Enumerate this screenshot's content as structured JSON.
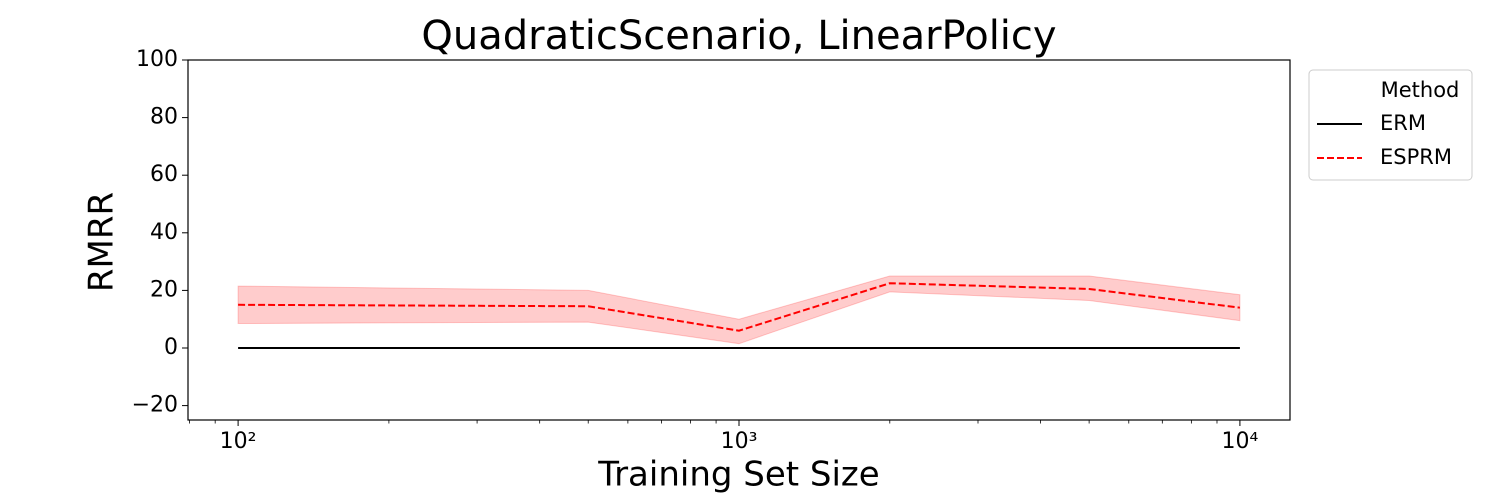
{
  "chart_data": {
    "type": "line",
    "title": "QuadraticScenario, LinearPolicy",
    "xlabel": "Training Set Size",
    "ylabel": "RMRR",
    "xscale": "log",
    "x": [
      100,
      500,
      1000,
      2000,
      5000,
      10000
    ],
    "xlim": [
      79.43,
      12589.25
    ],
    "xticks": [
      {
        "value": 100,
        "label": "10²"
      },
      {
        "value": 1000,
        "label": "10³"
      },
      {
        "value": 10000,
        "label": "10⁴"
      }
    ],
    "ylim": [
      -25,
      100
    ],
    "yticks": [
      {
        "value": -20,
        "label": "−20"
      },
      0,
      20,
      40,
      60,
      80,
      100
    ],
    "legend_title": "Method",
    "legend_loc": "upper right outside",
    "series": [
      {
        "name": "ERM",
        "color": "#000000",
        "dash": "solid",
        "values": [
          0,
          0,
          0,
          0,
          0,
          0
        ]
      },
      {
        "name": "ESPRM",
        "color": "#ff0000",
        "dash": "dashed",
        "values": [
          15,
          14.5,
          6,
          22.5,
          20.5,
          14
        ],
        "lower": [
          8.5,
          9,
          1.5,
          19.5,
          16.5,
          9.5
        ],
        "upper": [
          21.5,
          20,
          10,
          25,
          25,
          18.5
        ]
      }
    ]
  }
}
